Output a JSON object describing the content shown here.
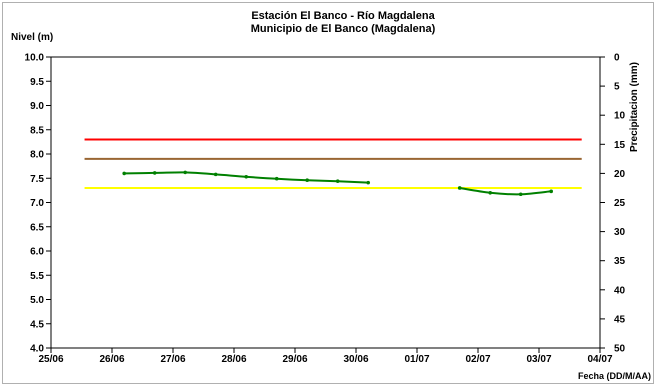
{
  "chart_data": {
    "type": "line",
    "title": "Estación El Banco - Río Magdalena",
    "subtitle": "Municipio de El Banco (Magdalena)",
    "ylabel": "Nivel (m)",
    "y2label": "Precipitacion (mm)",
    "xlabel": "Fecha (DD/M/AA)",
    "x_ticks": [
      "25/06",
      "26/06",
      "27/06",
      "28/06",
      "29/06",
      "30/06",
      "01/07",
      "02/07",
      "03/07",
      "04/07"
    ],
    "y_ticks": [
      "4.0",
      "4.5",
      "5.0",
      "5.5",
      "6.0",
      "6.5",
      "7.0",
      "7.5",
      "8.0",
      "8.5",
      "9.0",
      "9.5",
      "10.0"
    ],
    "y2_ticks": [
      "0",
      "5",
      "10",
      "15",
      "20",
      "25",
      "30",
      "35",
      "40",
      "45",
      "50"
    ],
    "xlim": [
      0,
      9
    ],
    "ylim": [
      4.0,
      10.0
    ],
    "y2lim": [
      0,
      50
    ],
    "y2_inverted": true,
    "grid": false,
    "thresholds": [
      {
        "y": 8.3,
        "color": "#ff0000",
        "x_start": 0.55,
        "x_end": 8.7
      },
      {
        "y": 7.9,
        "color": "#996633",
        "x_start": 0.55,
        "x_end": 8.7
      },
      {
        "y": 7.3,
        "color": "#ffff00",
        "x_start": 0.55,
        "x_end": 8.7
      }
    ],
    "series": [
      {
        "color": "#008000",
        "segments": [
          [
            [
              1.2,
              7.6
            ],
            [
              1.7,
              7.61
            ],
            [
              2.2,
              7.62
            ],
            [
              2.7,
              7.58
            ],
            [
              3.2,
              7.53
            ],
            [
              3.7,
              7.49
            ],
            [
              4.2,
              7.46
            ],
            [
              4.7,
              7.44
            ],
            [
              5.2,
              7.41
            ]
          ],
          [
            [
              6.7,
              7.3
            ],
            [
              7.2,
              7.2
            ],
            [
              7.7,
              7.17
            ],
            [
              8.2,
              7.23
            ]
          ]
        ]
      }
    ]
  }
}
